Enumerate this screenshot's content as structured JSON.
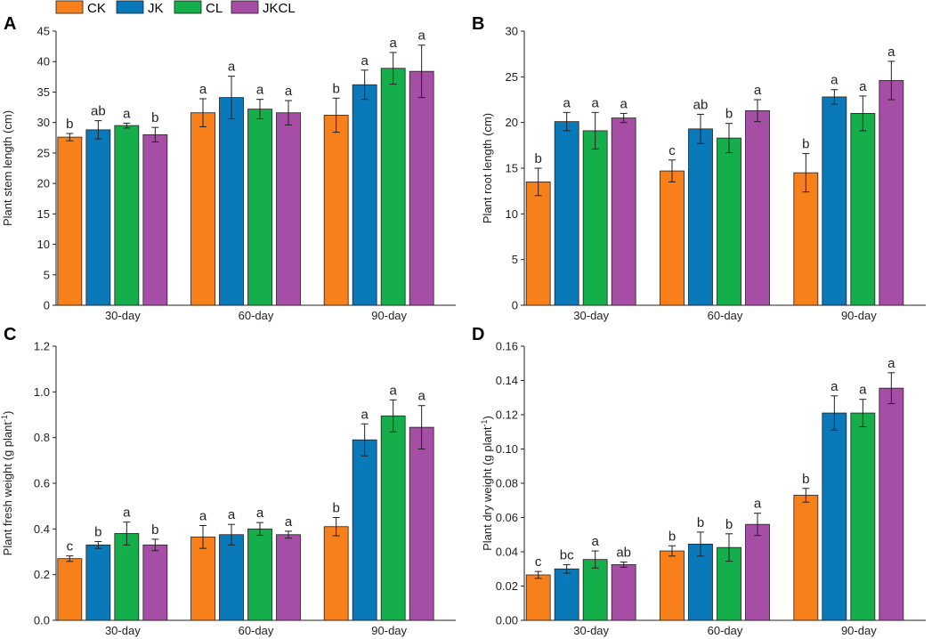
{
  "legend": {
    "entries": [
      {
        "label": "CK",
        "color": "#F7801A"
      },
      {
        "label": "JK",
        "color": "#0A79BA"
      },
      {
        "label": "CL",
        "color": "#14AF4A"
      },
      {
        "label": "JKCL",
        "color": "#A64EA6"
      }
    ]
  },
  "chart_data": [
    {
      "panel": "A",
      "type": "bar",
      "title": "",
      "xlabel": "",
      "ylabel": "Plant stem length (cm)",
      "ylim": [
        0,
        45
      ],
      "yticks": [
        "0",
        "5",
        "10",
        "15",
        "20",
        "25",
        "30",
        "35",
        "40",
        "45"
      ],
      "categories": [
        "30-day",
        "60-day",
        "90-day"
      ],
      "series": [
        {
          "name": "CK",
          "values": [
            27.6,
            31.6,
            31.2
          ],
          "errors": [
            0.6,
            2.3,
            2.8
          ],
          "labels": [
            "b",
            "a",
            "b"
          ]
        },
        {
          "name": "JK",
          "values": [
            28.8,
            34.1,
            36.2
          ],
          "errors": [
            1.5,
            3.5,
            2.4
          ],
          "labels": [
            "ab",
            "a",
            "a"
          ]
        },
        {
          "name": "CL",
          "values": [
            29.5,
            32.2,
            38.9
          ],
          "errors": [
            0.4,
            1.6,
            2.6
          ],
          "labels": [
            "a",
            "a",
            "a"
          ]
        },
        {
          "name": "JKCL",
          "values": [
            28.0,
            31.6,
            38.4
          ],
          "errors": [
            1.2,
            2.0,
            4.3
          ],
          "labels": [
            "b",
            "a",
            "a"
          ]
        }
      ]
    },
    {
      "panel": "B",
      "type": "bar",
      "title": "",
      "xlabel": "",
      "ylabel": "Plant root length (cm)",
      "ylim": [
        0,
        30
      ],
      "yticks": [
        "0",
        "5",
        "10",
        "15",
        "20",
        "25",
        "30"
      ],
      "categories": [
        "30-day",
        "60-day",
        "90-day"
      ],
      "series": [
        {
          "name": "CK",
          "values": [
            13.5,
            14.7,
            14.5
          ],
          "errors": [
            1.5,
            1.2,
            2.1
          ],
          "labels": [
            "b",
            "c",
            "b"
          ]
        },
        {
          "name": "JK",
          "values": [
            20.1,
            19.3,
            22.8
          ],
          "errors": [
            1.0,
            1.6,
            0.8
          ],
          "labels": [
            "a",
            "ab",
            "a"
          ]
        },
        {
          "name": "CL",
          "values": [
            19.1,
            18.3,
            21.0
          ],
          "errors": [
            2.0,
            1.6,
            1.9
          ],
          "labels": [
            "a",
            "b",
            "a"
          ]
        },
        {
          "name": "JKCL",
          "values": [
            20.5,
            21.3,
            24.6
          ],
          "errors": [
            0.5,
            1.2,
            2.1
          ],
          "labels": [
            "a",
            "a",
            "a"
          ]
        }
      ]
    },
    {
      "panel": "C",
      "type": "bar",
      "title": "",
      "xlabel": "",
      "ylabel": "Plant fresh weight (g plant",
      "ylabel_sup": "-1",
      "ylabel_tail": ")",
      "ylim": [
        0,
        1.2
      ],
      "yticks": [
        "0.0",
        "0.2",
        "0.4",
        "0.6",
        "0.8",
        "1.0",
        "1.2"
      ],
      "categories": [
        "30-day",
        "60-day",
        "90-day"
      ],
      "series": [
        {
          "name": "CK",
          "values": [
            0.27,
            0.365,
            0.41
          ],
          "errors": [
            0.012,
            0.05,
            0.04
          ],
          "labels": [
            "c",
            "a",
            "b"
          ]
        },
        {
          "name": "JK",
          "values": [
            0.33,
            0.375,
            0.79
          ],
          "errors": [
            0.015,
            0.045,
            0.07
          ],
          "labels": [
            "b",
            "a",
            "a"
          ]
        },
        {
          "name": "CL",
          "values": [
            0.38,
            0.4,
            0.895
          ],
          "errors": [
            0.05,
            0.028,
            0.07
          ],
          "labels": [
            "a",
            "a",
            "a"
          ]
        },
        {
          "name": "JKCL",
          "values": [
            0.33,
            0.375,
            0.845
          ],
          "errors": [
            0.025,
            0.015,
            0.095
          ],
          "labels": [
            "b",
            "a",
            "a"
          ]
        }
      ]
    },
    {
      "panel": "D",
      "type": "bar",
      "title": "",
      "xlabel": "",
      "ylabel": "Plant dry weight (g plant",
      "ylabel_sup": "-1",
      "ylabel_tail": ")",
      "ylim": [
        0,
        0.16
      ],
      "yticks": [
        "0.00",
        "0.02",
        "0.04",
        "0.06",
        "0.08",
        "0.10",
        "0.12",
        "0.14",
        "0.16"
      ],
      "categories": [
        "30-day",
        "60-day",
        "90-day"
      ],
      "series": [
        {
          "name": "CK",
          "values": [
            0.0265,
            0.0405,
            0.073
          ],
          "errors": [
            0.002,
            0.003,
            0.004
          ],
          "labels": [
            "c",
            "b",
            "b"
          ]
        },
        {
          "name": "JK",
          "values": [
            0.03,
            0.0445,
            0.121
          ],
          "errors": [
            0.0025,
            0.007,
            0.01
          ],
          "labels": [
            "bc",
            "b",
            "a"
          ]
        },
        {
          "name": "CL",
          "values": [
            0.0355,
            0.0425,
            0.121
          ],
          "errors": [
            0.005,
            0.008,
            0.008
          ],
          "labels": [
            "a",
            "b",
            "a"
          ]
        },
        {
          "name": "JKCL",
          "values": [
            0.0325,
            0.056,
            0.1355
          ],
          "errors": [
            0.0015,
            0.0065,
            0.009
          ],
          "labels": [
            "ab",
            "a",
            "a"
          ]
        }
      ]
    }
  ]
}
